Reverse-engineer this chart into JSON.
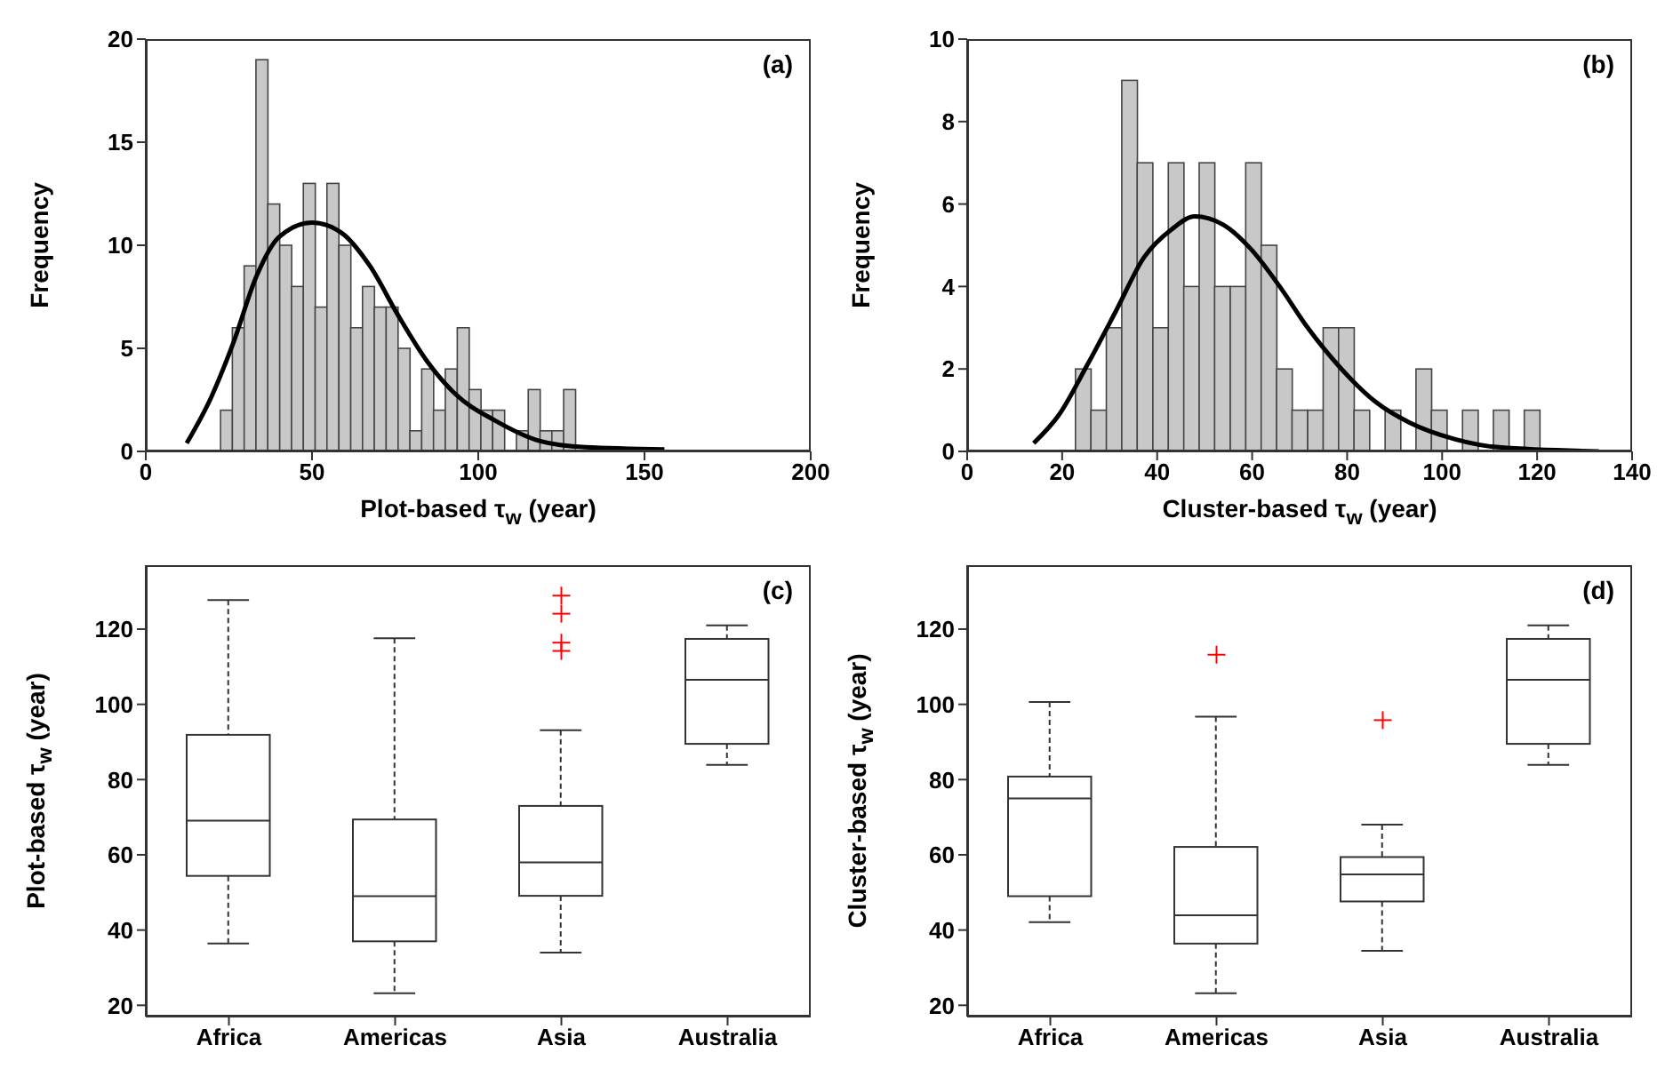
{
  "chart_data": [
    {
      "type": "histogram",
      "xlabel": "Plot-based τ$_{w}$ (year)",
      "ylabel": "Frequency",
      "xlim": [
        0,
        200
      ],
      "xticks": [
        0,
        50,
        100,
        150,
        200
      ],
      "ylim": [
        0,
        20
      ],
      "yticks": [
        0,
        5,
        10,
        15,
        20
      ],
      "annotations": [
        "(a)"
      ],
      "series": [
        {
          "type": "histogram",
          "color": "#c8c8c8",
          "bins": [
            22.5,
            26.1,
            29.6,
            33.2,
            36.7,
            40.3,
            43.9,
            47.4,
            51.0,
            54.5,
            58.1,
            61.7,
            65.2,
            68.8,
            72.3,
            75.9,
            79.5,
            83.0,
            86.6,
            90.1,
            93.7,
            97.3,
            100.8,
            104.4,
            107.9,
            111.5,
            115.1,
            118.6,
            122.2,
            125.7,
            129.3
          ],
          "values": [
            2,
            6,
            9,
            19,
            12,
            10,
            8,
            13,
            7,
            13,
            10,
            6,
            8,
            7,
            7,
            5,
            1,
            4,
            2,
            4,
            6,
            3,
            2,
            2,
            0,
            1,
            3,
            1,
            1,
            3
          ]
        },
        {
          "type": "line",
          "color": "#000000",
          "x": [
            12.3,
            19.6,
            26.4,
            33.3,
            40.1,
            50,
            58.9,
            67.4,
            75.9,
            84.5,
            93,
            105,
            118.6,
            132.3,
            156
          ],
          "values": [
            0.4,
            2.6,
            5.3,
            8.5,
            10.4,
            11.1,
            10.6,
            9.0,
            6.6,
            4.4,
            2.8,
            1.5,
            0.5,
            0.2,
            0.1
          ]
        }
      ]
    },
    {
      "type": "histogram",
      "xlabel": "Cluster-based τ$_{w}$ (year)",
      "ylabel": "Frequency",
      "xlim": [
        0,
        140
      ],
      "xticks": [
        0,
        20,
        40,
        60,
        80,
        100,
        120,
        140
      ],
      "ylim": [
        0,
        10
      ],
      "yticks": [
        0,
        2,
        4,
        6,
        8,
        10
      ],
      "annotations": [
        "(b)"
      ],
      "series": [
        {
          "type": "histogram",
          "color": "#c8c8c8",
          "bins": [
            22.8,
            26.1,
            29.3,
            32.6,
            35.8,
            39.1,
            42.4,
            45.6,
            48.9,
            52.1,
            55.4,
            58.7,
            61.9,
            65.2,
            68.4,
            71.7,
            75.0,
            78.2,
            81.5,
            84.7,
            88.0,
            91.3,
            94.5,
            97.8,
            101.0,
            104.3,
            107.6,
            110.8,
            114.1,
            117.3,
            120.6
          ],
          "values": [
            2,
            1,
            3,
            9,
            7,
            3,
            7,
            4,
            7,
            4,
            4,
            7,
            5,
            2,
            1,
            1,
            3,
            3,
            1,
            0,
            1,
            0,
            2,
            1,
            0,
            1,
            0,
            1,
            0,
            1
          ]
        },
        {
          "type": "line",
          "color": "#000000",
          "x": [
            14.0,
            19.4,
            25.3,
            31.3,
            37.2,
            43.2,
            47.9,
            53.9,
            59.8,
            65.8,
            71.7,
            78.8,
            86,
            93.1,
            102.6,
            112,
            133
          ],
          "values": [
            0.2,
            0.9,
            2.1,
            3.4,
            4.7,
            5.4,
            5.7,
            5.5,
            4.9,
            4.0,
            3.0,
            2.0,
            1.2,
            0.7,
            0.3,
            0.1,
            0.0
          ]
        }
      ]
    },
    {
      "type": "box",
      "ylabel": "Plot-based τ$_{w}$ (year)",
      "categories": [
        "Africa",
        "Americas",
        "Asia",
        "Australia"
      ],
      "ylim": [
        17,
        137
      ],
      "yticks": [
        20,
        40,
        60,
        80,
        100,
        120
      ],
      "color": "#333333",
      "marker": "cross",
      "line_style": "dashed",
      "annotations": [
        "(c)"
      ],
      "boxes": [
        {
          "low": 36.4,
          "q1": 54.4,
          "median": 69.1,
          "q3": 91.9,
          "high": 127.7
        },
        {
          "low": 23.2,
          "q1": 37.0,
          "median": 49.0,
          "q3": 69.4,
          "high": 117.6
        },
        {
          "low": 34.0,
          "q1": 49.1,
          "median": 58.0,
          "q3": 73.0,
          "high": 93.1,
          "outliers": [
            128.9,
            124.1,
            116.4,
            114.2
          ]
        },
        {
          "low": 83.9,
          "q1": 89.5,
          "median": 106.5,
          "q3": 117.4,
          "high": 121.0
        }
      ]
    },
    {
      "type": "box",
      "ylabel": "Cluster-based τ$_{w}$ (year)",
      "categories": [
        "Africa",
        "Americas",
        "Asia",
        "Australia"
      ],
      "ylim": [
        17,
        137
      ],
      "yticks": [
        20,
        40,
        60,
        80,
        100,
        120
      ],
      "color": "#333333",
      "marker": "cross",
      "line_style": "dashed",
      "annotations": [
        "(d)"
      ],
      "boxes": [
        {
          "low": 42.1,
          "q1": 49.0,
          "median": 75.0,
          "q3": 80.8,
          "high": 100.6
        },
        {
          "low": 23.2,
          "q1": 36.4,
          "median": 43.9,
          "q3": 62.1,
          "high": 96.7,
          "outliers": [
            113.2
          ]
        },
        {
          "low": 34.5,
          "q1": 47.6,
          "median": 54.8,
          "q3": 59.4,
          "high": 68.0,
          "outliers": [
            95.8
          ]
        },
        {
          "low": 83.9,
          "q1": 89.5,
          "median": 106.5,
          "q3": 117.4,
          "high": 121.0
        }
      ]
    }
  ]
}
